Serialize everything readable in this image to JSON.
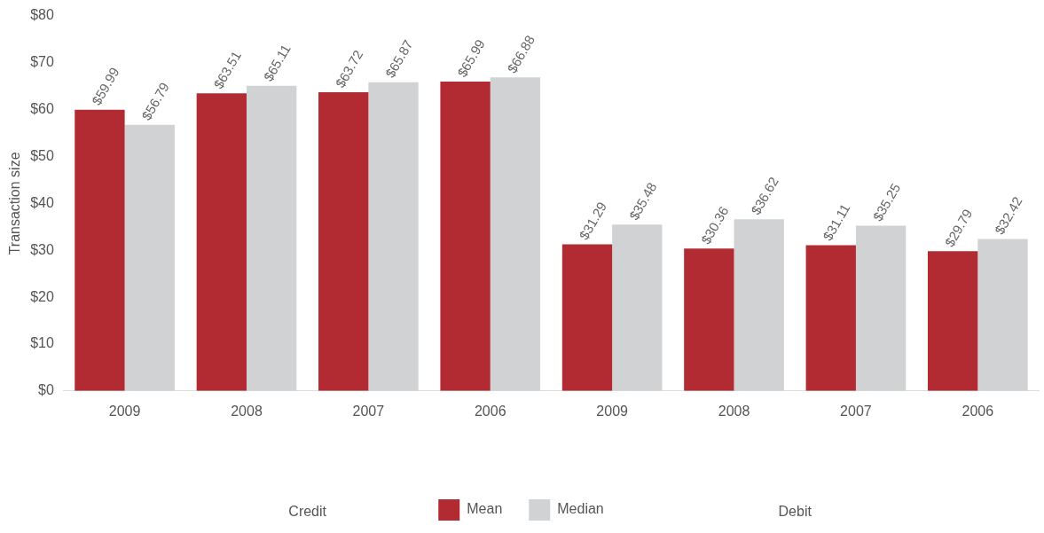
{
  "chart_data": {
    "type": "bar",
    "ylabel": "Transaction size",
    "categories": [
      "2009",
      "2008",
      "2007",
      "2006",
      "2009",
      "2008",
      "2007",
      "2006"
    ],
    "annotations": [
      "Credit",
      "Debit"
    ],
    "series": [
      {
        "name": "Mean",
        "color": "#b22a32",
        "values": [
          59.99,
          63.51,
          63.72,
          65.99,
          31.29,
          30.36,
          31.11,
          29.79
        ],
        "value_labels": [
          "$59.99",
          "$63.51",
          "$63.72",
          "$65.99",
          "$31.29",
          "$30.36",
          "$31.11",
          "$29.79"
        ]
      },
      {
        "name": "Median",
        "color": "#d1d2d4",
        "values": [
          56.79,
          65.11,
          65.87,
          66.88,
          35.48,
          36.62,
          35.25,
          32.42
        ],
        "value_labels": [
          "$56.79",
          "$65.11",
          "$65.87",
          "$66.88",
          "$35.48",
          "$36.62",
          "$35.25",
          "$32.42"
        ]
      }
    ],
    "ylim": [
      0,
      80
    ],
    "yticks": [
      {
        "value": 0,
        "label": "$0"
      },
      {
        "value": 10,
        "label": "$10"
      },
      {
        "value": 20,
        "label": "$20"
      },
      {
        "value": 30,
        "label": "$30"
      },
      {
        "value": 40,
        "label": "$40"
      },
      {
        "value": 50,
        "label": "$50"
      },
      {
        "value": 60,
        "label": "$60"
      },
      {
        "value": 70,
        "label": "$70"
      },
      {
        "value": 80,
        "label": "$80"
      }
    ],
    "grid": false,
    "legend": "bottom"
  }
}
